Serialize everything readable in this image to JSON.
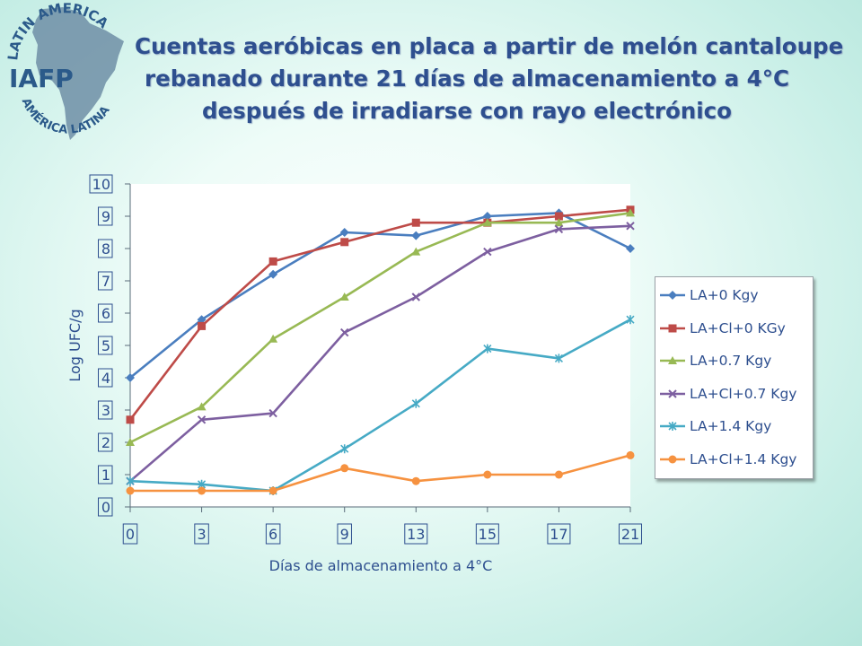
{
  "logo": {
    "text_top": "LATIN AMERICA",
    "text_center": "IAFP",
    "text_bottom": "AMÉRICA LATINA"
  },
  "title_lines": [
    "Cuentas aeróbicas en placa a partir de melón cantaloupe",
    "rebanado durante 21 días de almacenamiento a 4°C",
    "después de irradiarse con rayo electrónico"
  ],
  "chart_data": {
    "type": "line",
    "title": "Cuentas aeróbicas en placa a partir de melón cantaloupe rebanado durante 21 días de almacenamiento a 4°C después de irradiarse con rayo electrónico",
    "xlabel": "Días de almacenamiento a 4°C",
    "ylabel": "Log UFC/g",
    "categories": [
      "0",
      "3",
      "6",
      "9",
      "13",
      "15",
      "17",
      "21"
    ],
    "yticks": [
      "0",
      "1",
      "2",
      "3",
      "4",
      "5",
      "6",
      "7",
      "8",
      "9",
      "10"
    ],
    "ylim": [
      0,
      10
    ],
    "grid": false,
    "legend_position": "right",
    "series": [
      {
        "name": "LA+0 Kgy",
        "color": "#4a7ebf",
        "marker": "diamond",
        "values": [
          4.0,
          5.8,
          7.2,
          8.5,
          8.4,
          9.0,
          9.1,
          8.0
        ]
      },
      {
        "name": "LA+Cl+0 KGy",
        "color": "#be4b48",
        "marker": "square",
        "values": [
          2.7,
          5.6,
          7.6,
          8.2,
          8.8,
          8.8,
          9.0,
          9.2
        ]
      },
      {
        "name": "LA+0.7 Kgy",
        "color": "#98b954",
        "marker": "triangle",
        "values": [
          2.0,
          3.1,
          5.2,
          6.5,
          7.9,
          8.8,
          8.8,
          9.1
        ]
      },
      {
        "name": "LA+Cl+0.7 Kgy",
        "color": "#7d5fa0",
        "marker": "x",
        "values": [
          0.8,
          2.7,
          2.9,
          5.4,
          6.5,
          7.9,
          8.6,
          8.7
        ]
      },
      {
        "name": "LA+1.4 Kgy",
        "color": "#46aac5",
        "marker": "star",
        "values": [
          0.8,
          0.7,
          0.5,
          1.8,
          3.2,
          4.9,
          4.6,
          5.8
        ]
      },
      {
        "name": "LA+Cl+1.4 Kgy",
        "color": "#f69240",
        "marker": "circle",
        "values": [
          0.5,
          0.5,
          0.5,
          1.2,
          0.8,
          1.0,
          1.0,
          1.6
        ]
      }
    ]
  }
}
